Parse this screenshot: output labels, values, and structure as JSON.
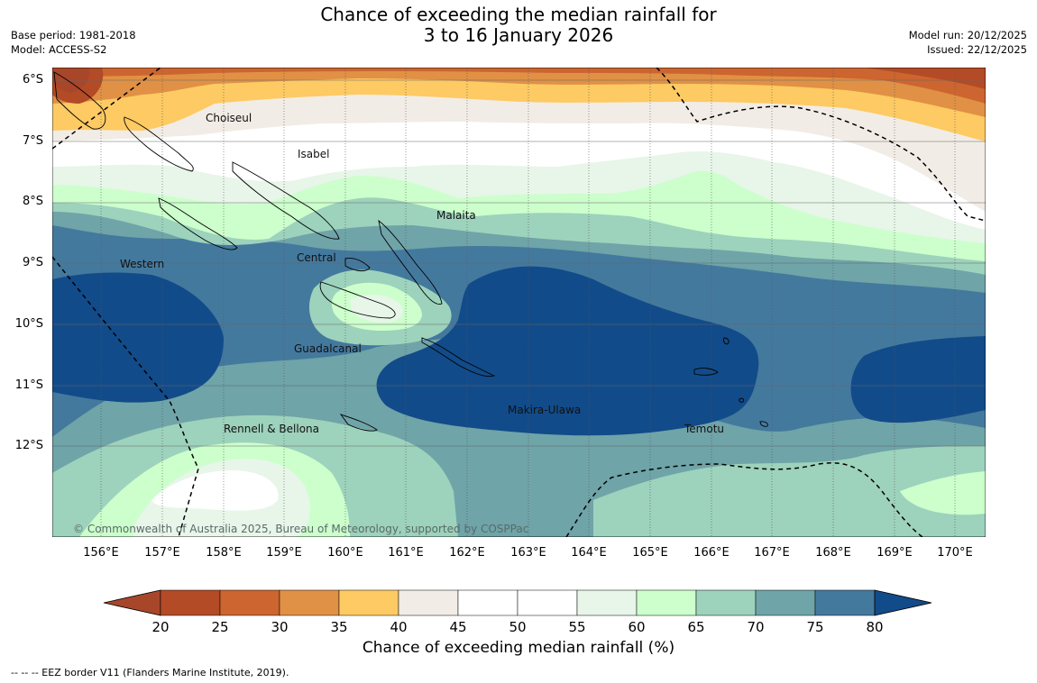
{
  "title": {
    "line1": "Chance of exceeding the median rainfall for",
    "line2": "3 to 16 January 2026"
  },
  "meta": {
    "base_period": "Base period: 1981-2018",
    "model": "Model: ACCESS-S2",
    "model_run": "Model run: 20/12/2025",
    "issued": "Issued: 22/12/2025"
  },
  "map": {
    "lat_labels": [
      "6°S",
      "7°S",
      "8°S",
      "9°S",
      "10°S",
      "11°S",
      "12°S"
    ],
    "lon_labels": [
      "156°E",
      "157°E",
      "158°E",
      "159°E",
      "160°E",
      "161°E",
      "162°E",
      "163°E",
      "164°E",
      "165°E",
      "166°E",
      "167°E",
      "168°E",
      "169°E",
      "170°E"
    ],
    "places": [
      "Choiseul",
      "Isabel",
      "Malaita",
      "Central",
      "Western",
      "Guadalcanal",
      "Makira-Ulawa",
      "Rennell & Bellona",
      "Temotu"
    ],
    "copyright": "© Commonwealth of Australia 2025, Bureau of Meteorology, supported by COSPPac"
  },
  "colorbar": {
    "ticks": [
      "20",
      "25",
      "30",
      "35",
      "40",
      "45",
      "50",
      "55",
      "60",
      "65",
      "70",
      "75",
      "80"
    ],
    "label": "Chance of exceeding median rainfall (%)",
    "colors": [
      "#a8462a",
      "#b34b26",
      "#cc6530",
      "#e09145",
      "#fdca63",
      "#f2ece6",
      "#ffffff",
      "#ffffff",
      "#e8f5e9",
      "#ccffcc",
      "#9dd2bc",
      "#6fa4a8",
      "#44799e",
      "#124b89"
    ]
  },
  "legend": {
    "eez": "--  --  -- EEZ border V11 (Flanders Marine Institute, 2019)."
  }
}
